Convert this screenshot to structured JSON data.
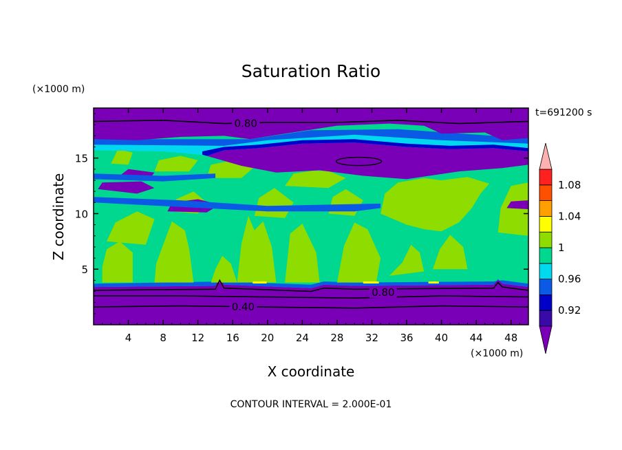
{
  "chart_data": {
    "type": "heatmap",
    "title": "Saturation Ratio",
    "xlabel": "X coordinate",
    "ylabel": "Z coordinate",
    "x_unit": "(×1000 m)",
    "y_unit": "(×1000 m)",
    "time_label": "t=691200 s",
    "footer": "CONTOUR INTERVAL = 2.000E-01",
    "xlim": [
      0,
      50
    ],
    "ylim": [
      0,
      19.5
    ],
    "x_ticks": [
      "4",
      "8",
      "12",
      "16",
      "20",
      "24",
      "28",
      "32",
      "36",
      "40",
      "44",
      "48"
    ],
    "y_ticks": [
      "5",
      "10",
      "15"
    ],
    "colorbar": {
      "levels": [
        0.9,
        0.92,
        0.94,
        0.96,
        0.98,
        1.0,
        1.02,
        1.04,
        1.06,
        1.08,
        1.1
      ],
      "labels": [
        "0.92",
        "0.96",
        "1",
        "1.04",
        "1.08"
      ],
      "colors": [
        "#7a00b8",
        "#3a0aa8",
        "#0000c8",
        "#0a5ae6",
        "#00d8f0",
        "#00d890",
        "#8edc00",
        "#ffff00",
        "#ffa000",
        "#ff5000",
        "#ff2020",
        "#ffb0b0"
      ]
    },
    "contour_labels": [
      {
        "text": "0.80",
        "x": 17.5,
        "y": 18.1
      },
      {
        "text": "0.80",
        "x": 33.3,
        "y": 2.9
      },
      {
        "text": "0.40",
        "x": 17.2,
        "y": 1.6
      }
    ]
  }
}
